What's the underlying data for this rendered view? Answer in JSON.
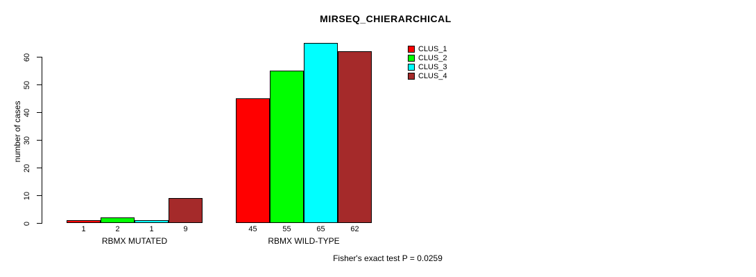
{
  "title": "MIRSEQ_CHIERARCHICAL",
  "footer": "Fisher's exact test P = 0.0259",
  "chart_data": {
    "type": "bar",
    "title": "MIRSEQ_CHIERARCHICAL",
    "xlabel": "",
    "ylabel": "number of cases",
    "ylim": [
      0,
      60
    ],
    "yticks": [
      0,
      10,
      20,
      30,
      40,
      50,
      60
    ],
    "grid": false,
    "legend_position": "top-right",
    "background_color": "#ffffff",
    "axis_color": "#000000",
    "categories": [
      "RBMX MUTATED",
      "RBMX WILD-TYPE"
    ],
    "series": [
      {
        "name": "CLUS_1",
        "color": "#FF0000",
        "values": [
          1,
          45
        ]
      },
      {
        "name": "CLUS_2",
        "color": "#00FF00",
        "values": [
          2,
          55
        ]
      },
      {
        "name": "CLUS_3",
        "color": "#00FFFF",
        "values": [
          1,
          65
        ]
      },
      {
        "name": "CLUS_4",
        "color": "#A52A2A",
        "values": [
          9,
          62
        ]
      }
    ],
    "bar_value_labels": [
      [
        1,
        2,
        1,
        9
      ],
      [
        45,
        55,
        65,
        62
      ]
    ],
    "annotation": "Fisher's exact test P = 0.0259"
  }
}
